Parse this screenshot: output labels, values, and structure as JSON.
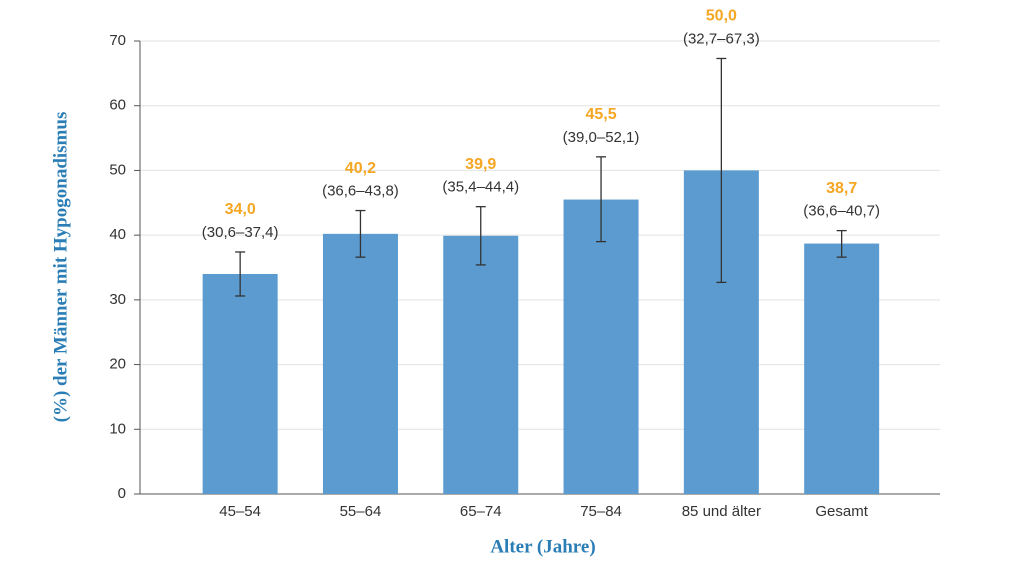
{
  "chart_data": {
    "type": "bar",
    "y_label": "(%) der Männer mit Hypogonadismus",
    "x_label": "Alter (Jahre)",
    "categories": [
      "45–54",
      "55–64",
      "65–74",
      "75–84",
      "85 und älter",
      "Gesamt"
    ],
    "values": [
      34.0,
      40.2,
      39.9,
      45.5,
      50.0,
      38.7
    ],
    "value_labels": [
      "34,0",
      "40,2",
      "39,9",
      "45,5",
      "50,0",
      "38,7"
    ],
    "ci_low": [
      30.6,
      36.6,
      35.4,
      39.0,
      32.7,
      36.6
    ],
    "ci_high": [
      37.4,
      43.8,
      44.4,
      52.1,
      67.3,
      40.7
    ],
    "ci_labels": [
      "(30,6–37,4)",
      "(36,6–43,8)",
      "(35,4–44,4)",
      "(39,0–52,1)",
      "(32,7–67,3)",
      "(36,6–40,7)"
    ],
    "color": "#5b9bd0",
    "ylim": [
      0,
      70
    ],
    "yticks": [
      0,
      10,
      20,
      30,
      40,
      50,
      60,
      70
    ],
    "grid": true
  }
}
